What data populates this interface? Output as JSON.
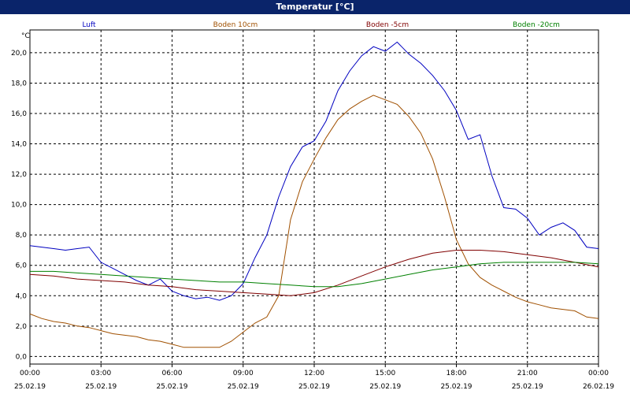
{
  "window": {
    "title": "Temperatur [°C]"
  },
  "chart_data": {
    "type": "line",
    "title": "Temperatur [°C]",
    "ylabel": "°C",
    "xlabel": "",
    "ylim": [
      -0.5,
      21.5
    ],
    "yticks": [
      "0,0",
      "2,0",
      "4,0",
      "6,0",
      "8,0",
      "10,0",
      "12,0",
      "14,0",
      "16,0",
      "18,0",
      "20,0"
    ],
    "ytick_values": [
      0,
      2,
      4,
      6,
      8,
      10,
      12,
      14,
      16,
      18,
      20
    ],
    "xlim": [
      0,
      24
    ],
    "xticks": [
      {
        "time": "00:00",
        "date": "25.02.19"
      },
      {
        "time": "03:00",
        "date": "25.02.19"
      },
      {
        "time": "06:00",
        "date": "25.02.19"
      },
      {
        "time": "09:00",
        "date": "25.02.19"
      },
      {
        "time": "12:00",
        "date": "25.02.19"
      },
      {
        "time": "15:00",
        "date": "25.02.19"
      },
      {
        "time": "18:00",
        "date": "25.02.19"
      },
      {
        "time": "21:00",
        "date": "25.02.19"
      },
      {
        "time": "00:00",
        "date": "26.02.19"
      }
    ],
    "grid": true,
    "legend_position": "top",
    "series": [
      {
        "name": "Luft",
        "color": "#0000c0",
        "x": [
          0,
          0.5,
          1,
          1.5,
          2,
          2.5,
          3,
          3.5,
          4,
          4.5,
          5,
          5.5,
          6,
          6.5,
          7,
          7.5,
          8,
          8.5,
          9,
          9.5,
          10,
          10.5,
          11,
          11.5,
          12,
          12.5,
          13,
          13.5,
          14,
          14.5,
          15,
          15.5,
          16,
          16.5,
          17,
          17.5,
          18,
          18.5,
          19,
          19.5,
          20,
          20.5,
          21,
          21.5,
          22,
          22.5,
          23,
          23.5,
          24
        ],
        "values": [
          7.3,
          7.2,
          7.1,
          7.0,
          7.1,
          7.2,
          6.2,
          5.8,
          5.4,
          5.0,
          4.7,
          5.1,
          4.3,
          4.0,
          3.8,
          3.9,
          3.7,
          4.0,
          4.8,
          6.5,
          8.0,
          10.5,
          12.5,
          13.8,
          14.2,
          15.5,
          17.5,
          18.8,
          19.8,
          20.4,
          20.1,
          20.7,
          19.9,
          19.3,
          18.5,
          17.5,
          16.2,
          14.3,
          14.6,
          11.9,
          9.8,
          9.7,
          9.1,
          8.0,
          8.5,
          8.8,
          8.3,
          7.2,
          7.1
        ]
      },
      {
        "name": "Boden 10cm",
        "color": "#a05000",
        "x": [
          0,
          0.5,
          1,
          1.5,
          2,
          2.5,
          3,
          3.5,
          4,
          4.5,
          5,
          5.5,
          6,
          6.5,
          7,
          7.5,
          8,
          8.5,
          9,
          9.5,
          10,
          10.5,
          11,
          11.5,
          12,
          12.5,
          13,
          13.5,
          14,
          14.5,
          15,
          15.5,
          16,
          16.5,
          17,
          17.5,
          18,
          18.5,
          19,
          19.5,
          20,
          20.5,
          21,
          21.5,
          22,
          22.5,
          23,
          23.5,
          24
        ],
        "values": [
          2.8,
          2.5,
          2.3,
          2.2,
          2.0,
          1.9,
          1.7,
          1.5,
          1.4,
          1.3,
          1.1,
          1.0,
          0.8,
          0.6,
          0.6,
          0.6,
          0.6,
          1.0,
          1.6,
          2.2,
          2.6,
          4.0,
          9.0,
          11.5,
          13.0,
          14.4,
          15.6,
          16.3,
          16.8,
          17.2,
          16.9,
          16.6,
          15.8,
          14.7,
          13.0,
          10.5,
          7.7,
          6.1,
          5.2,
          4.7,
          4.3,
          3.9,
          3.6,
          3.4,
          3.2,
          3.1,
          3.0,
          2.6,
          2.5
        ]
      },
      {
        "name": "Boden -5cm",
        "color": "#800000",
        "x": [
          0,
          1,
          2,
          3,
          4,
          5,
          6,
          7,
          8,
          9,
          10,
          11,
          12,
          13,
          14,
          15,
          16,
          17,
          18,
          19,
          20,
          21,
          22,
          23,
          24
        ],
        "values": [
          5.4,
          5.3,
          5.1,
          5.0,
          4.9,
          4.7,
          4.6,
          4.4,
          4.3,
          4.2,
          4.1,
          4.0,
          4.2,
          4.7,
          5.3,
          5.9,
          6.4,
          6.8,
          7.0,
          7.0,
          6.9,
          6.7,
          6.5,
          6.2,
          5.9
        ]
      },
      {
        "name": "Boden -20cm",
        "color": "#008000",
        "x": [
          0,
          1,
          2,
          3,
          4,
          5,
          6,
          7,
          8,
          9,
          10,
          11,
          12,
          13,
          14,
          15,
          16,
          17,
          18,
          19,
          20,
          21,
          22,
          23,
          24
        ],
        "values": [
          5.6,
          5.6,
          5.5,
          5.4,
          5.3,
          5.2,
          5.1,
          5.0,
          4.9,
          4.9,
          4.8,
          4.7,
          4.6,
          4.6,
          4.8,
          5.1,
          5.4,
          5.7,
          5.9,
          6.1,
          6.2,
          6.2,
          6.2,
          6.2,
          6.1
        ]
      }
    ]
  }
}
